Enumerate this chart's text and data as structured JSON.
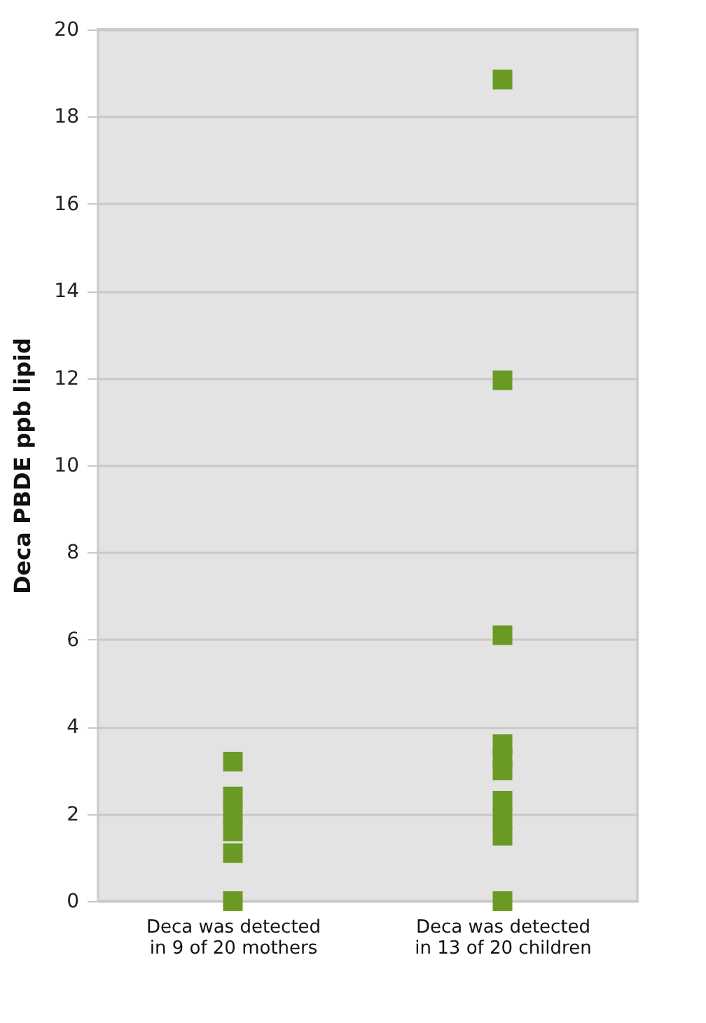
{
  "chart_data": {
    "type": "scatter",
    "ylabel": "Deca PBDE ppb lipid",
    "categories": [
      "Deca was detected in 9 of 20 mothers",
      "Deca was detected in 13 of 20 children"
    ],
    "series": [
      {
        "color": "#6a9a23",
        "x": [
          "Deca was detected in 9 of 20 mothers",
          "Deca was detected in 9 of 20 mothers",
          "Deca was detected in 9 of 20 mothers",
          "Deca was detected in 9 of 20 mothers",
          "Deca was detected in 9 of 20 mothers",
          "Deca was detected in 9 of 20 mothers"
        ],
        "values": [
          3.2,
          2.4,
          2.0,
          1.6,
          1.1,
          0
        ]
      },
      {
        "color": "#6a9a23",
        "x": [
          "Deca was detected in 13 of 20 children",
          "Deca was detected in 13 of 20 children",
          "Deca was detected in 13 of 20 children",
          "Deca was detected in 13 of 20 children",
          "Deca was detected in 13 of 20 children",
          "Deca was detected in 13 of 20 children",
          "Deca was detected in 13 of 20 children",
          "Deca was detected in 13 of 20 children",
          "Deca was detected in 13 of 20 children",
          "Deca was detected in 13 of 20 children"
        ],
        "values": [
          18.85,
          11.95,
          6.1,
          3.6,
          3.3,
          3.0,
          2.3,
          1.9,
          1.5,
          0
        ]
      }
    ],
    "marker": "square",
    "ylim": [
      0,
      20
    ],
    "yticks": [
      0,
      2,
      4,
      6,
      8,
      10,
      12,
      14,
      16,
      18,
      20
    ],
    "grid": "y",
    "legend": false
  }
}
